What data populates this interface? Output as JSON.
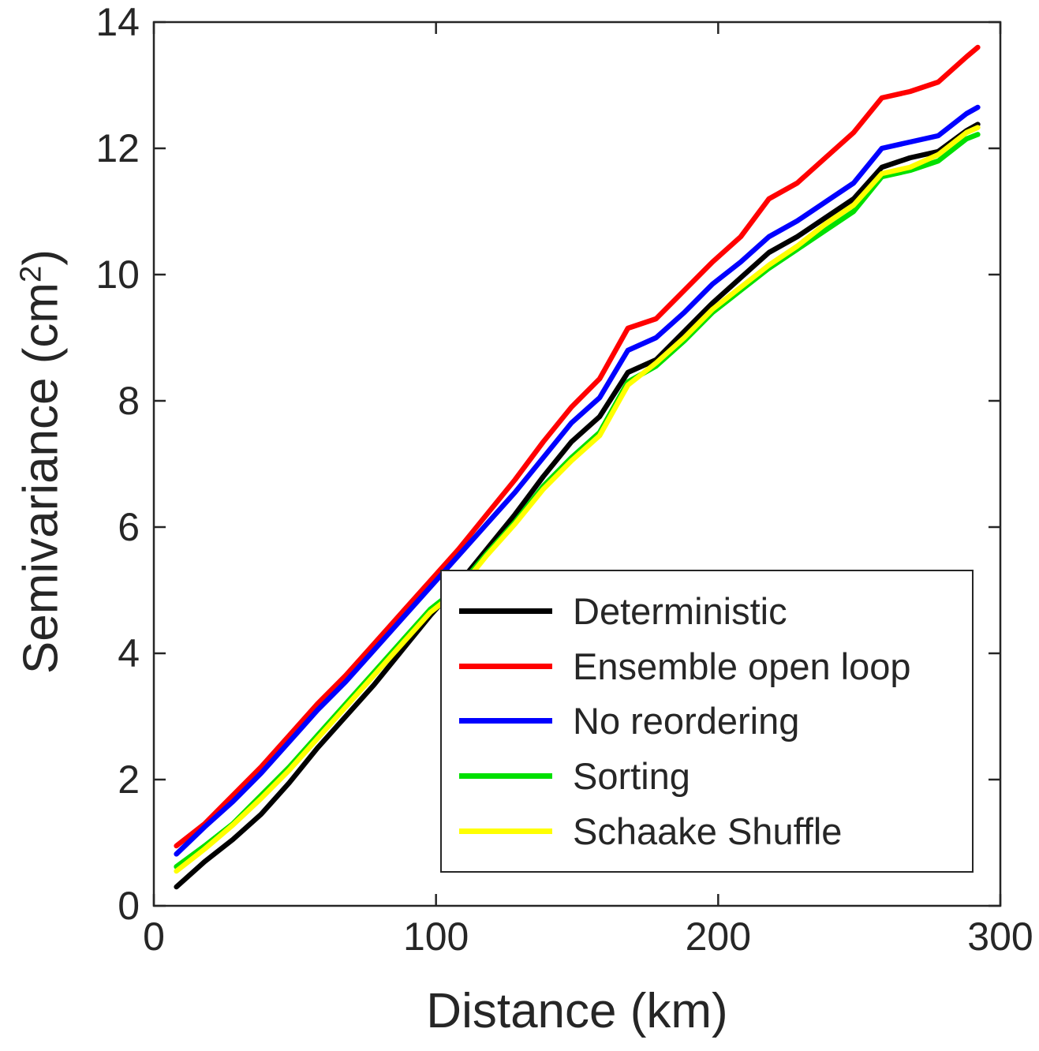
{
  "figure": {
    "background": "#ffffff",
    "axis_color": "#262626"
  },
  "chart_data": {
    "type": "line",
    "title": "",
    "xlabel": "Distance (km)",
    "ylabel": "Semivariance (cm²)",
    "ylabel_parts": {
      "base": "Semivariance (cm",
      "sup": "2",
      "close": ")"
    },
    "xlim": [
      0,
      300
    ],
    "ylim": [
      0,
      14
    ],
    "xticks": [
      0,
      100,
      200,
      300
    ],
    "yticks": [
      0,
      2,
      4,
      6,
      8,
      10,
      12,
      14
    ],
    "grid": false,
    "legend_position": "inside-lower-right",
    "x": [
      8,
      18,
      28,
      38,
      48,
      58,
      68,
      78,
      88,
      98,
      108,
      118,
      128,
      138,
      148,
      158,
      168,
      178,
      188,
      198,
      208,
      218,
      228,
      238,
      248,
      258,
      268,
      278,
      288,
      292
    ],
    "series": [
      {
        "name": "Deterministic",
        "color": "#000000",
        "values": [
          0.3,
          0.7,
          1.05,
          1.45,
          1.95,
          2.5,
          3.0,
          3.5,
          4.05,
          4.6,
          5.1,
          5.65,
          6.2,
          6.8,
          7.35,
          7.75,
          8.45,
          8.65,
          9.1,
          9.55,
          9.95,
          10.35,
          10.6,
          10.9,
          11.2,
          11.7,
          11.85,
          11.95,
          12.28,
          12.38
        ]
      },
      {
        "name": "Ensemble open loop",
        "color": "#ff0000",
        "values": [
          0.95,
          1.3,
          1.75,
          2.2,
          2.7,
          3.2,
          3.65,
          4.15,
          4.65,
          5.15,
          5.65,
          6.2,
          6.75,
          7.35,
          7.9,
          8.35,
          9.15,
          9.3,
          9.75,
          10.2,
          10.6,
          11.2,
          11.45,
          11.85,
          12.25,
          12.8,
          12.9,
          13.05,
          13.45,
          13.6
        ]
      },
      {
        "name": "No reordering",
        "color": "#0000ff",
        "values": [
          0.82,
          1.25,
          1.65,
          2.1,
          2.6,
          3.1,
          3.55,
          4.05,
          4.55,
          5.05,
          5.55,
          6.05,
          6.55,
          7.1,
          7.65,
          8.05,
          8.8,
          9.0,
          9.4,
          9.85,
          10.2,
          10.6,
          10.85,
          11.15,
          11.45,
          12.0,
          12.1,
          12.2,
          12.55,
          12.65
        ]
      },
      {
        "name": "Sorting",
        "color": "#00e000",
        "values": [
          0.62,
          0.95,
          1.3,
          1.75,
          2.2,
          2.7,
          3.2,
          3.7,
          4.2,
          4.7,
          5.05,
          5.58,
          6.08,
          6.65,
          7.1,
          7.5,
          8.3,
          8.55,
          8.95,
          9.4,
          9.75,
          10.1,
          10.4,
          10.7,
          11.0,
          11.55,
          11.65,
          11.8,
          12.15,
          12.22
        ]
      },
      {
        "name": "Schaake Shuffle",
        "color": "#ffff00",
        "values": [
          0.55,
          0.9,
          1.28,
          1.7,
          2.15,
          2.65,
          3.15,
          3.65,
          4.15,
          4.65,
          5.0,
          5.55,
          6.05,
          6.6,
          7.05,
          7.45,
          8.25,
          8.6,
          9.0,
          9.45,
          9.8,
          10.15,
          10.45,
          10.8,
          11.1,
          11.6,
          11.7,
          11.9,
          12.25,
          12.33
        ]
      }
    ],
    "draw_order": [
      "Deterministic",
      "Ensemble open loop",
      "No reordering",
      "Sorting",
      "Schaake Shuffle"
    ],
    "legend_order": [
      "Deterministic",
      "Ensemble open loop",
      "No reordering",
      "Sorting",
      "Schaake Shuffle"
    ]
  }
}
